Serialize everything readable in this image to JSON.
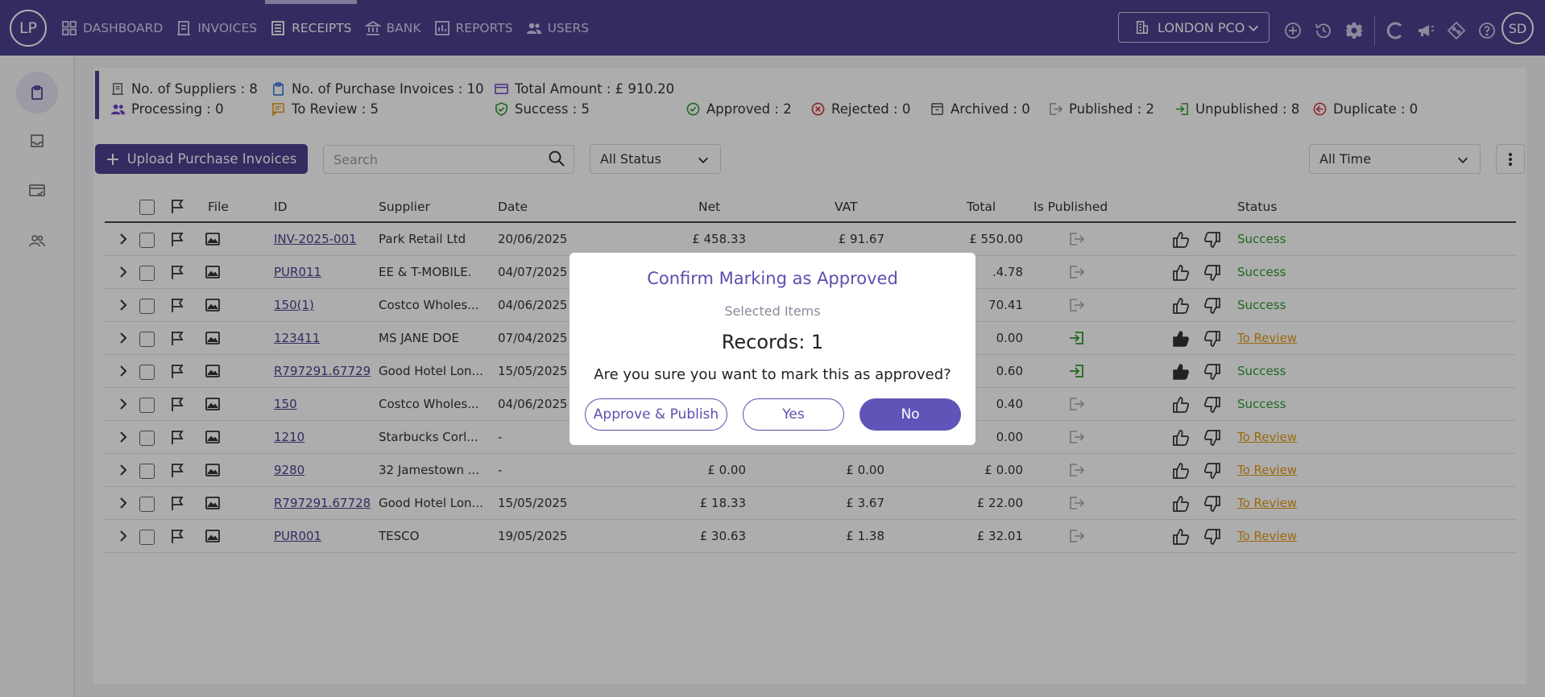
{
  "brand": {
    "logo_text": "LP"
  },
  "nav": {
    "items": [
      {
        "label": "DASHBOARD",
        "icon": "dashboard-icon",
        "active": false
      },
      {
        "label": "INVOICES",
        "icon": "invoice-icon",
        "active": false
      },
      {
        "label": "RECEIPTS",
        "icon": "receipt-icon",
        "active": true
      },
      {
        "label": "BANK",
        "icon": "bank-icon",
        "active": false
      },
      {
        "label": "REPORTS",
        "icon": "reports-icon",
        "active": false
      },
      {
        "label": "USERS",
        "icon": "users-icon",
        "active": false
      }
    ]
  },
  "header": {
    "company": "LONDON PCO",
    "avatar_initials": "SD"
  },
  "summary": {
    "suppliers": "No. of Suppliers : 8",
    "purchase_invoices": "No. of Purchase Invoices : 10",
    "total_amount": "Total Amount : £ 910.20",
    "processing": "Processing : 0",
    "to_review": "To Review : 5",
    "success": "Success : 5",
    "approved": "Approved : 2",
    "rejected": "Rejected : 0",
    "archived": "Archived : 0",
    "published": "Published : 2",
    "unpublished": "Unpublished : 8",
    "duplicate": "Duplicate : 0"
  },
  "toolbar": {
    "upload_label": "Upload Purchase Invoices",
    "search_placeholder": "Search",
    "status_filter": "All Status",
    "time_filter": "All Time"
  },
  "table": {
    "columns": {
      "file": "File",
      "id": "ID",
      "supplier": "Supplier",
      "date": "Date",
      "net": "Net",
      "vat": "VAT",
      "total": "Total",
      "is_published": "Is Published",
      "status": "Status"
    },
    "rows": [
      {
        "id": "INV-2025-001",
        "supplier": "Park Retail Ltd",
        "date": "20/06/2025",
        "net": "£ 458.33",
        "vat": "£ 91.67",
        "total": "£ 550.00",
        "published": false,
        "approved": false,
        "status": "Success"
      },
      {
        "id": "PUR011",
        "supplier": "EE & T-MOBILE.",
        "date": "04/07/2025",
        "net": "",
        "vat": "",
        "total": ".4.78",
        "published": false,
        "approved": false,
        "status": "Success"
      },
      {
        "id": "150(1)",
        "supplier": "Costco Wholes...",
        "date": "04/06/2025",
        "net": "",
        "vat": "",
        "total": "70.41",
        "published": false,
        "approved": false,
        "status": "Success"
      },
      {
        "id": "123411",
        "supplier": "MS JANE DOE",
        "date": "07/04/2025",
        "net": "",
        "vat": "",
        "total": "0.00",
        "published": true,
        "approved": true,
        "status": "To Review"
      },
      {
        "id": "R797291.67729",
        "supplier": "Good Hotel Lon...",
        "date": "15/05/2025",
        "net": "",
        "vat": "",
        "total": "0.60",
        "published": true,
        "approved": true,
        "status": "Success"
      },
      {
        "id": "150",
        "supplier": "Costco Wholes...",
        "date": "04/06/2025",
        "net": "",
        "vat": "",
        "total": "0.40",
        "published": false,
        "approved": false,
        "status": "Success"
      },
      {
        "id": "1210",
        "supplier": "Starbucks Corl...",
        "date": "-",
        "net": "",
        "vat": "",
        "total": "0.00",
        "published": false,
        "approved": false,
        "status": "To Review"
      },
      {
        "id": "9280",
        "supplier": "32 Jamestown ...",
        "date": "-",
        "net": "£ 0.00",
        "vat": "£ 0.00",
        "total": "£ 0.00",
        "published": false,
        "approved": false,
        "status": "To Review"
      },
      {
        "id": "R797291.67728",
        "supplier": "Good Hotel Lon...",
        "date": "15/05/2025",
        "net": "£ 18.33",
        "vat": "£ 3.67",
        "total": "£ 22.00",
        "published": false,
        "approved": false,
        "status": "To Review"
      },
      {
        "id": "PUR001",
        "supplier": "TESCO",
        "date": "19/05/2025",
        "net": "£ 30.63",
        "vat": "£ 1.38",
        "total": "£ 32.01",
        "published": false,
        "approved": false,
        "status": "To Review"
      }
    ]
  },
  "modal": {
    "title": "Confirm Marking as Approved",
    "subtitle": "Selected Items",
    "records": "Records: 1",
    "question": "Are you sure you want to mark this as approved?",
    "approve_publish_label": "Approve & Publish",
    "yes_label": "Yes",
    "no_label": "No"
  },
  "colors": {
    "primary": "#4a4290",
    "success": "#2e9a2e",
    "review": "#e59a12",
    "danger": "#d33333"
  }
}
